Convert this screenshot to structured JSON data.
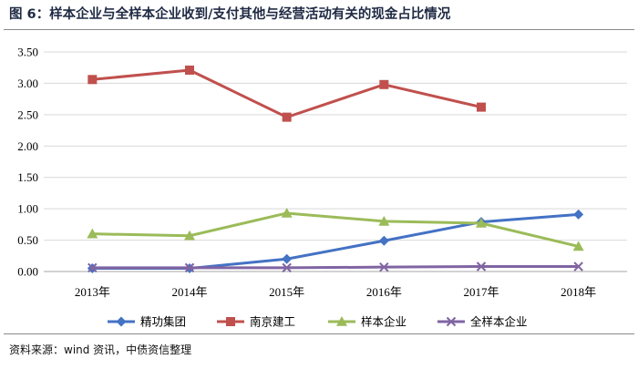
{
  "title": "图 6：样本企业与全样本企业收到/支付其他与经营活动有关的现金占比情况",
  "source": "资料来源：wind 资讯，中债资信整理",
  "chart_data": {
    "type": "line",
    "x": [
      "2013年",
      "2014年",
      "2015年",
      "2016年",
      "2017年",
      "2018年"
    ],
    "ylim": [
      0,
      3.5
    ],
    "yticks": [
      "0.00",
      "0.50",
      "1.00",
      "1.50",
      "2.00",
      "2.50",
      "3.00",
      "3.50"
    ],
    "grid": true,
    "legend_position": "bottom",
    "series": [
      {
        "name": "精功集团",
        "color": "#4472c4",
        "marker": "diamond",
        "values": [
          0.05,
          0.05,
          0.2,
          0.49,
          0.79,
          0.91
        ]
      },
      {
        "name": "南京建工",
        "color": "#c0504d",
        "marker": "square",
        "values": [
          3.06,
          3.21,
          2.46,
          2.98,
          2.62,
          null
        ]
      },
      {
        "name": "样本企业",
        "color": "#9bbb59",
        "marker": "triangle",
        "values": [
          0.6,
          0.57,
          0.93,
          0.8,
          0.77,
          0.4
        ]
      },
      {
        "name": "全样本企业",
        "color": "#8064a2",
        "marker": "x",
        "values": [
          0.06,
          0.06,
          0.06,
          0.07,
          0.08,
          0.08
        ]
      }
    ]
  }
}
